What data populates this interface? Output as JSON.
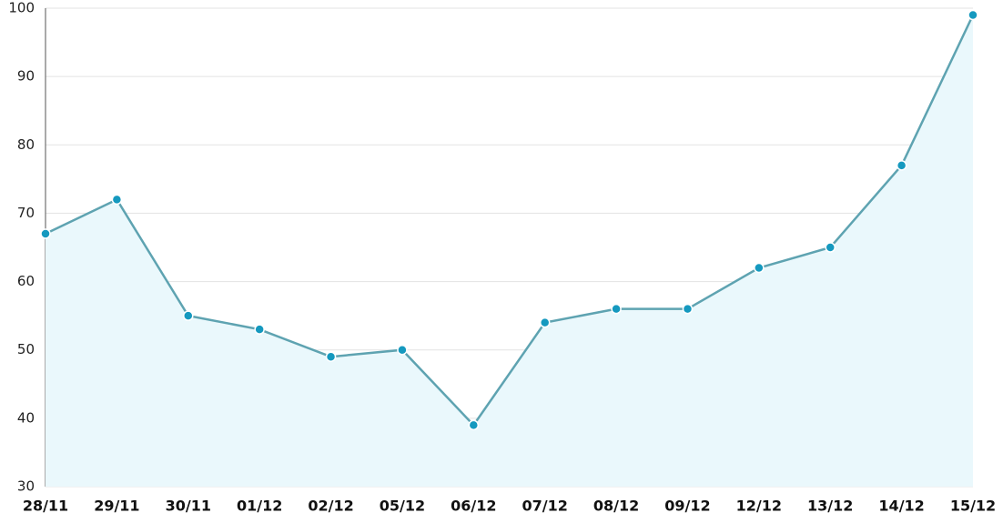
{
  "chart_data": {
    "type": "line",
    "categories": [
      "28/11",
      "29/11",
      "30/11",
      "01/12",
      "02/12",
      "05/12",
      "06/12",
      "07/12",
      "08/12",
      "09/12",
      "12/12",
      "13/12",
      "14/12",
      "15/12"
    ],
    "values": [
      67,
      72,
      55,
      53,
      49,
      50,
      39,
      54,
      56,
      56,
      62,
      65,
      77,
      99
    ],
    "ylim": [
      30,
      100
    ],
    "yticks": [
      30,
      40,
      50,
      60,
      70,
      80,
      90,
      100
    ],
    "grid": true,
    "area": true,
    "line_color": "#5ea3b1",
    "marker_color": "#1599bf",
    "area_color": "#eaf8fc"
  }
}
